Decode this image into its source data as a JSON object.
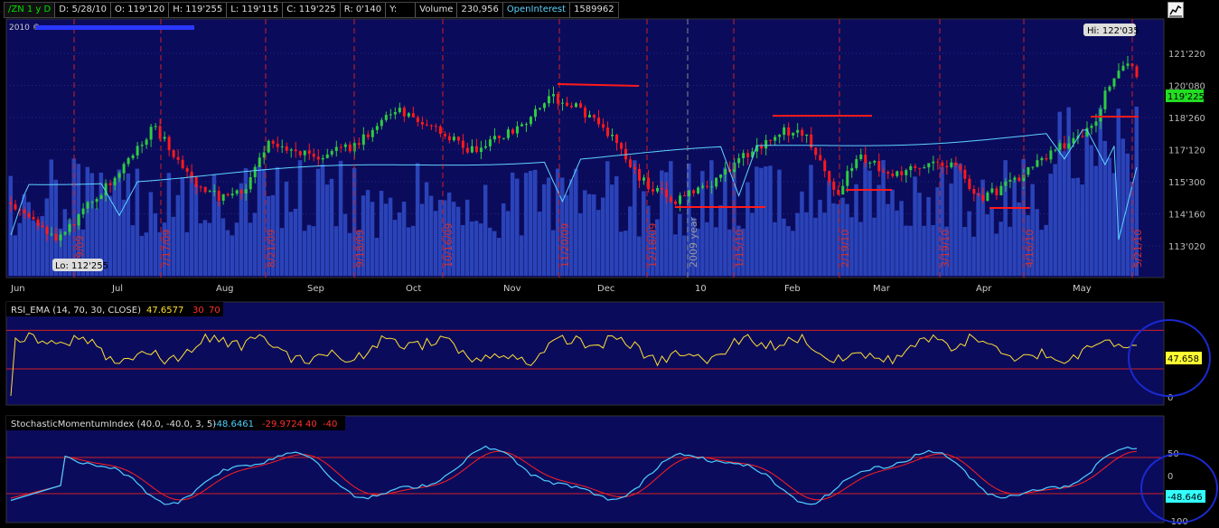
{
  "header": {
    "symbol": "/ZN 1 y D",
    "date": "D: 5/28/10",
    "open": "O: 119'120",
    "high": "H: 119'255",
    "low": "L: 119'115",
    "close": "C: 119'225",
    "range": "R: 0'140",
    "y": "Y:",
    "volume_label": "Volume",
    "volume_value": "230,956",
    "oi_label": "OpenInterest",
    "oi_value": "1589962"
  },
  "copyright": "2010 ©",
  "hi_label": "Hi: 122'035",
  "lo_label": "Lo: 112'255",
  "last_price_label": "119'225",
  "price_axis_labels": [
    "121'220",
    "120'080",
    "118'260",
    "117'120",
    "115'300",
    "114'160",
    "113'020"
  ],
  "month_labels": [
    "Jun",
    "Jul",
    "Aug",
    "Sep",
    "Oct",
    "Nov",
    "Dec",
    "10",
    "Feb",
    "Mar",
    "Apr",
    "May"
  ],
  "date_markers": [
    "6/9/09",
    "7/17/09",
    "8/21/09",
    "9/18/09",
    "10/16/09",
    "11/20/09",
    "12/18/09",
    "2009 year",
    "1/15/10",
    "2/19/10",
    "3/19/10",
    "4/16/10",
    "5/21/10"
  ],
  "rsi_panel": {
    "name": "RSI_EMA (14, 70, 30, CLOSE)",
    "value": "47.6577",
    "oversold": "30",
    "overbought": "70",
    "last_label": "47.658",
    "axis_labels": [
      "0"
    ]
  },
  "smi_panel": {
    "name": "StochasticMomentumIndex (40.0, -40.0, 3, 5)",
    "smi_value": "-48.6461",
    "avg_value": "-29.9724",
    "upper": "40",
    "lower": "-40",
    "last_label": "-48.646",
    "axis_labels": [
      "50",
      "0",
      "-100"
    ]
  },
  "colors": {
    "panel_bg": "#0b0b5c",
    "up_candle": "#2ecc40",
    "down_candle": "#ff1a1a",
    "volume": "#2a43b8",
    "oi_line": "#5fd4ff",
    "rsi_line": "#ffe033",
    "smi_line": "#4fd0ff",
    "smi_avg": "#ff2020",
    "price_label_bg": "#22dd22",
    "annotation": "#1a2ad0"
  },
  "chart_data": [
    {
      "type": "candlestick",
      "title": "/ZN 1 y D",
      "xlabel": "",
      "ylabel": "",
      "x_range": [
        "2009-06-01",
        "2010-05-28"
      ],
      "ylim": [
        "112'160",
        "122'100"
      ],
      "summary": {
        "hi": "122'035",
        "lo": "112'255",
        "last": "119'225"
      },
      "series": [
        {
          "name": "Volume",
          "last": "230,956"
        },
        {
          "name": "OpenInterest",
          "last": "1589962"
        }
      ]
    },
    {
      "type": "line",
      "title": "RSI_EMA (14, 70, 30, CLOSE)",
      "ylim": [
        0,
        100
      ],
      "levels": [
        30,
        70
      ],
      "series": [
        {
          "name": "RSI_EMA",
          "last": 47.6577
        }
      ]
    },
    {
      "type": "line",
      "title": "StochasticMomentumIndex (40.0, -40.0, 3, 5)",
      "ylim": [
        -100,
        100
      ],
      "levels": [
        40,
        -40
      ],
      "series": [
        {
          "name": "SMI",
          "last": -48.6461
        },
        {
          "name": "AvgSMI",
          "last": -29.9724
        }
      ]
    }
  ]
}
